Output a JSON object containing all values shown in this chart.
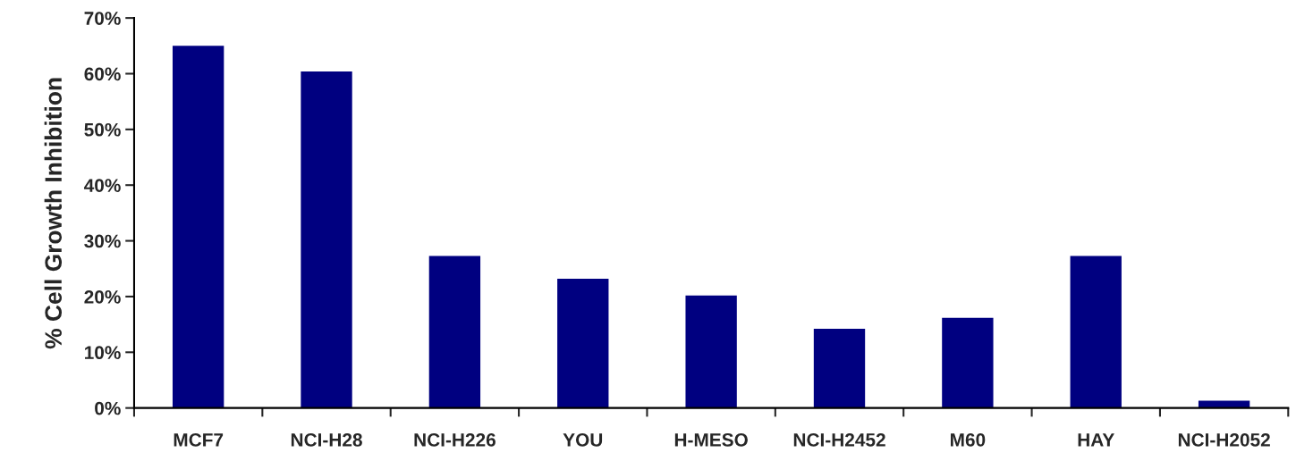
{
  "chart_data": {
    "type": "bar",
    "ylabel": "% Cell Growth Inhibition",
    "categories": [
      "MCF7",
      "NCI-H28",
      "NCI-H226",
      "YOU",
      "H-MESO",
      "NCI-H2452",
      "M60",
      "HAY",
      "NCI-H2052"
    ],
    "values": [
      65,
      60.4,
      27.3,
      23.2,
      20.2,
      14.2,
      16.2,
      27.3,
      1.3
    ],
    "color": "#000080",
    "ylim": [
      0,
      70
    ],
    "yticks": [
      {
        "value": 0,
        "label": "0%"
      },
      {
        "value": 10,
        "label": "10%"
      },
      {
        "value": 20,
        "label": "20%"
      },
      {
        "value": 30,
        "label": "30%"
      },
      {
        "value": 40,
        "label": "40%"
      },
      {
        "value": 50,
        "label": "50%"
      },
      {
        "value": 60,
        "label": "60%"
      },
      {
        "value": 70,
        "label": "70%"
      }
    ],
    "grid": false,
    "legend": false
  }
}
